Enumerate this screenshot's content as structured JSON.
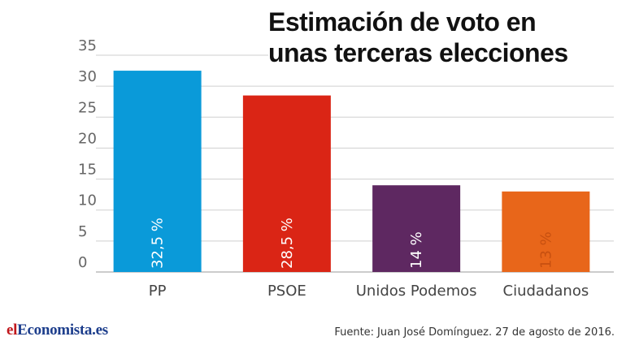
{
  "chart_data": {
    "type": "bar",
    "title_lines": [
      "Estimación de voto en",
      "unas terceras elecciones"
    ],
    "categories": [
      "PP",
      "PSOE",
      "Unidos Podemos",
      "Ciudadanos"
    ],
    "values": [
      32.5,
      28.5,
      14,
      13
    ],
    "value_labels": [
      "32,5 %",
      "28,5 %",
      "14 %",
      "13 %"
    ],
    "colors": [
      "#0a9ad9",
      "#da2515",
      "#5e2861",
      "#e8661a"
    ],
    "label_colors": [
      "#ffffff",
      "#ffffff",
      "#ffffff",
      "#c75010"
    ],
    "ylim": [
      0,
      35
    ],
    "yticks": [
      "0",
      "5",
      "10",
      "15",
      "20",
      "25",
      "30",
      "35"
    ],
    "grid": true,
    "xlabel": "",
    "ylabel": ""
  },
  "footer": {
    "logo_el": "el",
    "logo_rest": "Economista.es",
    "source_label": "Fuente:",
    "source_text": "Juan José Domínguez. 27 de agosto de 2016."
  }
}
